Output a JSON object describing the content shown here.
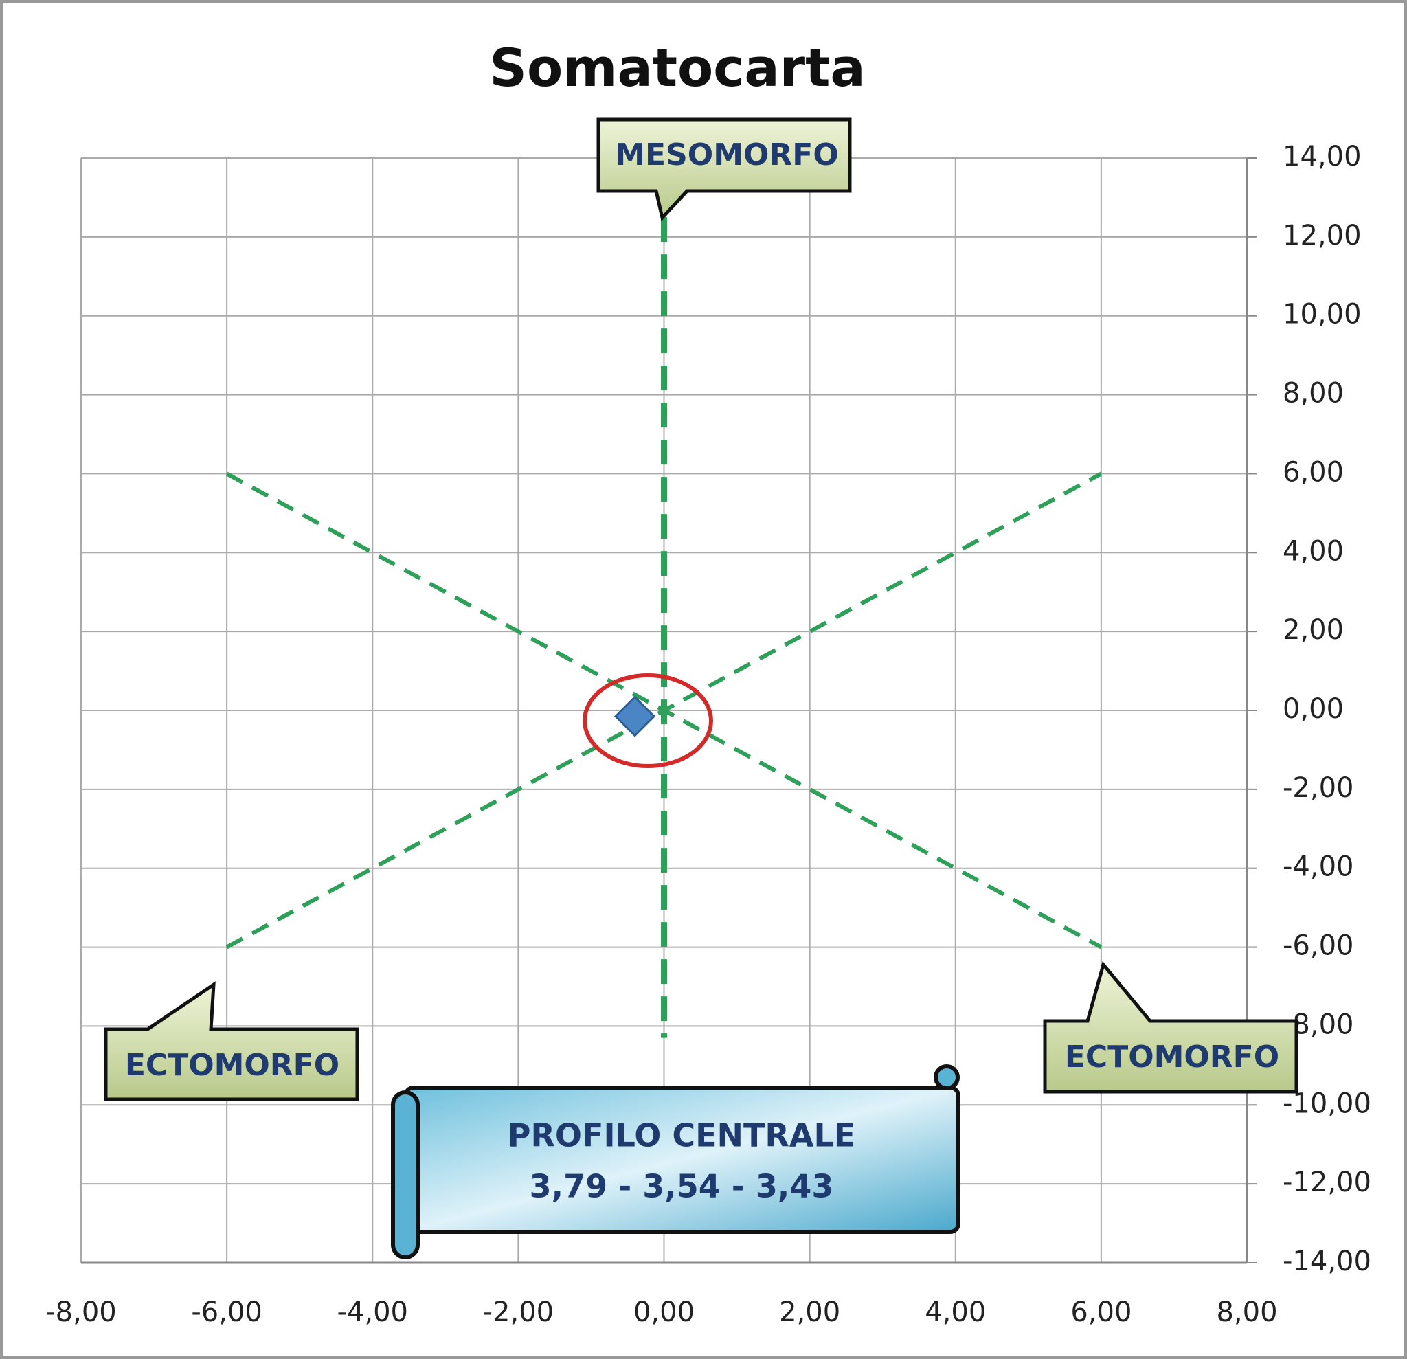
{
  "chart_data": {
    "type": "scatter",
    "title": "Somatocarta",
    "xlim": [
      -8,
      8
    ],
    "ylim": [
      -14,
      14
    ],
    "xticks": [
      {
        "value": -8,
        "label": "-8,00"
      },
      {
        "value": -6,
        "label": "-6,00"
      },
      {
        "value": -4,
        "label": "-4,00"
      },
      {
        "value": -2,
        "label": "-2,00"
      },
      {
        "value": 0,
        "label": "0,00"
      },
      {
        "value": 2,
        "label": "2,00"
      },
      {
        "value": 4,
        "label": "4,00"
      },
      {
        "value": 6,
        "label": "6,00"
      },
      {
        "value": 8,
        "label": "8,00"
      }
    ],
    "yticks": [
      {
        "value": -14,
        "label": "-14,00"
      },
      {
        "value": -12,
        "label": "-12,00"
      },
      {
        "value": -10,
        "label": "-10,00"
      },
      {
        "value": -8,
        "label": "-8,00"
      },
      {
        "value": -6,
        "label": "-6,00"
      },
      {
        "value": -4,
        "label": "-4,00"
      },
      {
        "value": -2,
        "label": "-2,00"
      },
      {
        "value": 0,
        "label": "0,00"
      },
      {
        "value": 2,
        "label": "2,00"
      },
      {
        "value": 4,
        "label": "4,00"
      },
      {
        "value": 6,
        "label": "6,00"
      },
      {
        "value": 8,
        "label": "8,00"
      },
      {
        "value": 10,
        "label": "10,00"
      },
      {
        "value": 12,
        "label": "12,00"
      },
      {
        "value": 14,
        "label": "14,00"
      }
    ],
    "grid": true,
    "lines": [
      {
        "x": [
          0,
          0
        ],
        "y": [
          12.5,
          -8.3
        ],
        "color": "#2ea05a"
      },
      {
        "x": [
          -6,
          6
        ],
        "y": [
          6,
          -6
        ],
        "color": "#2ea05a"
      },
      {
        "x": [
          -6,
          6
        ],
        "y": [
          -6,
          6
        ],
        "color": "#2ea05a"
      }
    ],
    "points": {
      "x": [
        -0.4
      ],
      "y": [
        -0.15
      ],
      "color": "#4a86c5"
    },
    "annotations": [
      "MESOMORFO",
      "ECTOMORFO",
      "ECTOMORFO"
    ],
    "banner": [
      "PROFILO CENTRALE",
      "3,79 - 3,54 - 3,43"
    ]
  }
}
